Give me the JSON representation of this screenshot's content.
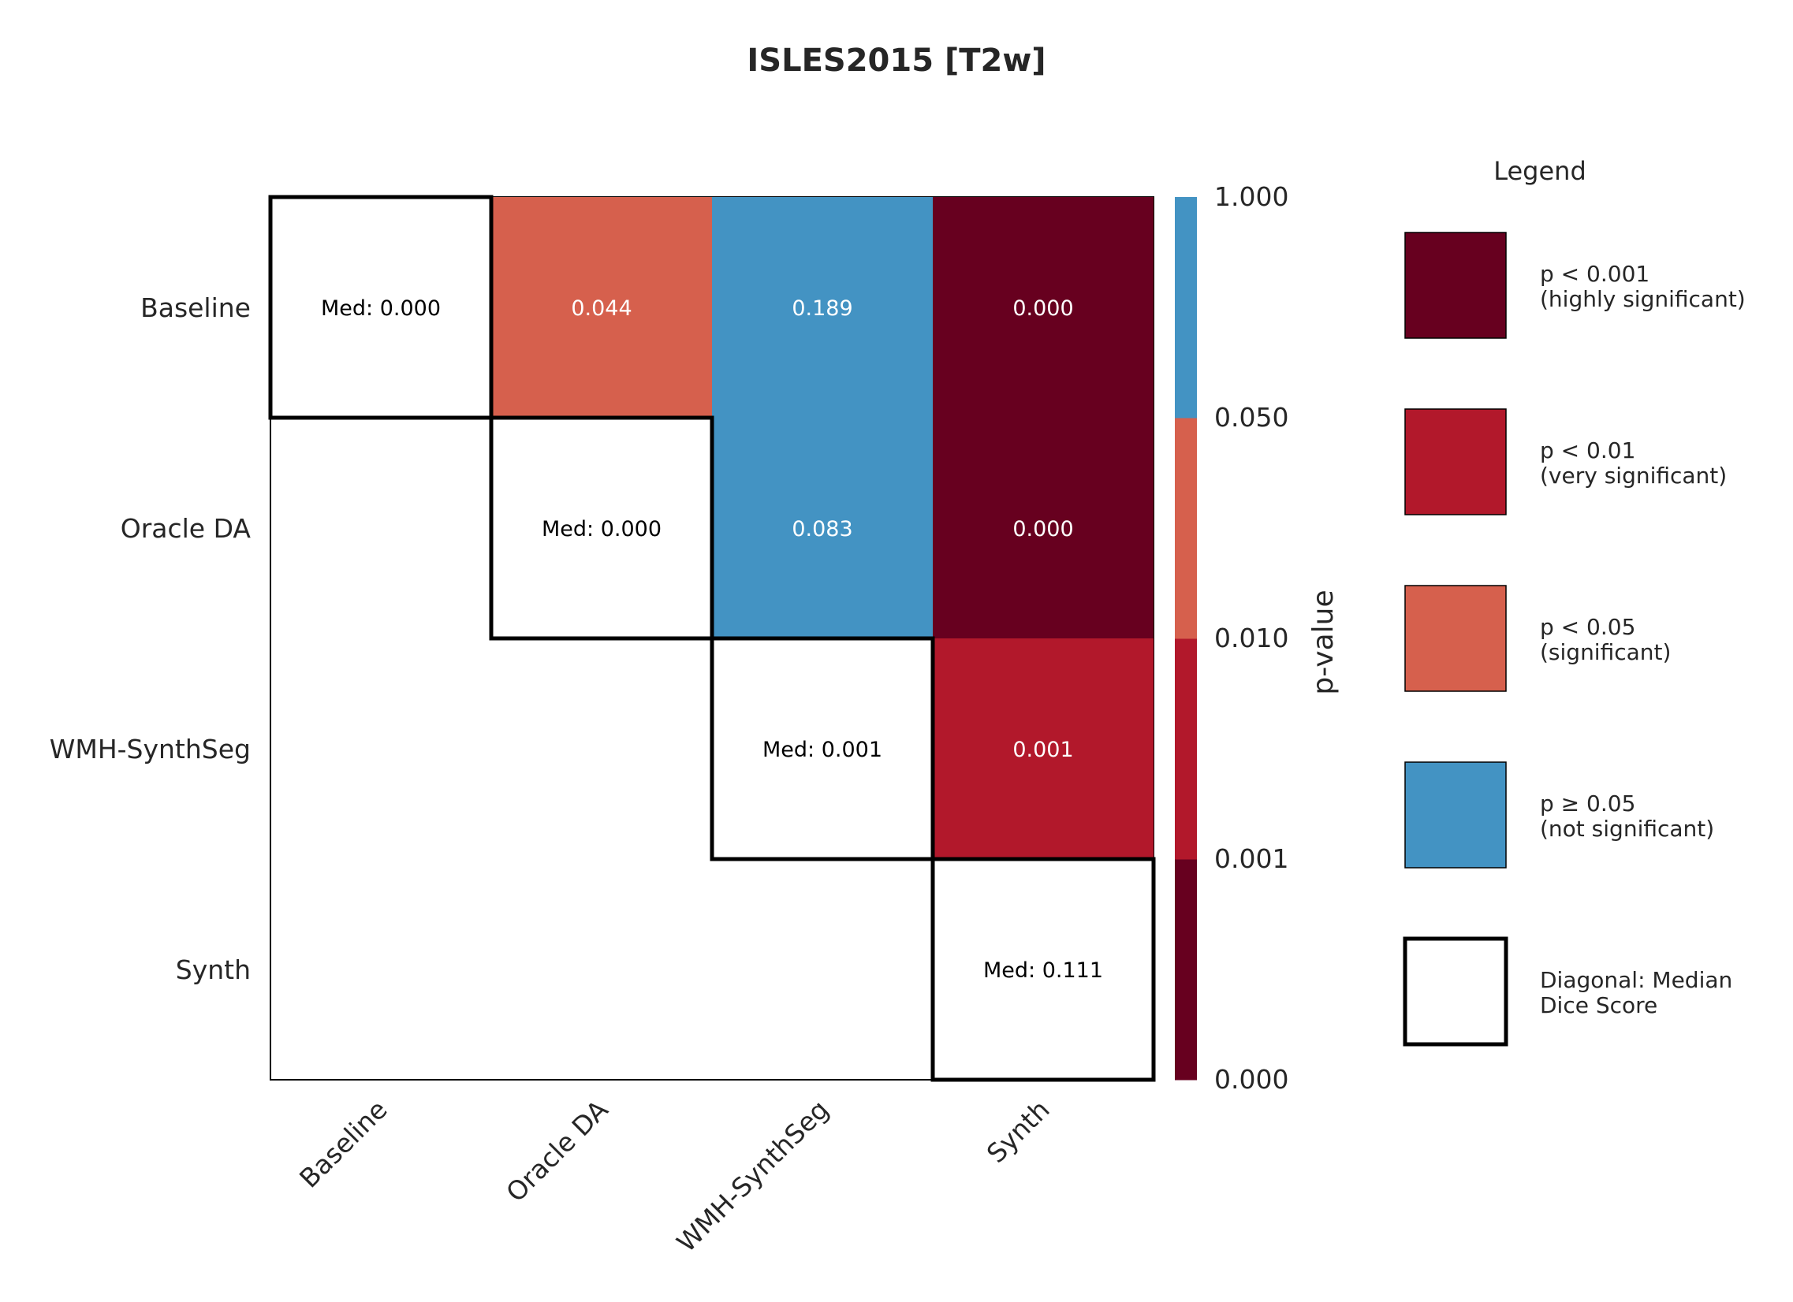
{
  "chart_data": {
    "type": "heatmap",
    "title": "ISLES2015 [T2w]",
    "rows": [
      "Baseline",
      "Oracle DA",
      "WMH-SynthSeg",
      "Synth"
    ],
    "cols": [
      "Baseline",
      "Oracle DA",
      "WMH-SynthSeg",
      "Synth"
    ],
    "cells": [
      {
        "row": 0,
        "col": 0,
        "label": "Med: 0.000",
        "value": 0.0,
        "diagonal": true
      },
      {
        "row": 0,
        "col": 1,
        "label": "0.044",
        "value": 0.044,
        "diagonal": false
      },
      {
        "row": 0,
        "col": 2,
        "label": "0.189",
        "value": 0.189,
        "diagonal": false
      },
      {
        "row": 0,
        "col": 3,
        "label": "0.000",
        "value": 0.0,
        "diagonal": false
      },
      {
        "row": 1,
        "col": 1,
        "label": "Med: 0.000",
        "value": 0.0,
        "diagonal": true
      },
      {
        "row": 1,
        "col": 2,
        "label": "0.083",
        "value": 0.083,
        "diagonal": false
      },
      {
        "row": 1,
        "col": 3,
        "label": "0.000",
        "value": 0.0,
        "diagonal": false
      },
      {
        "row": 2,
        "col": 2,
        "label": "Med: 0.001",
        "value": 0.001,
        "diagonal": true
      },
      {
        "row": 2,
        "col": 3,
        "label": "0.001",
        "value": 0.001,
        "diagonal": false
      },
      {
        "row": 3,
        "col": 3,
        "label": "Med: 0.111",
        "value": 0.111,
        "diagonal": true
      }
    ],
    "colorbar": {
      "label": "p-value",
      "ticks": [
        "0.000",
        "0.001",
        "0.010",
        "0.050",
        "1.000"
      ],
      "bands": [
        {
          "from": "0.000",
          "to": "0.001",
          "color": "#67001f"
        },
        {
          "from": "0.001",
          "to": "0.010",
          "color": "#b2182b"
        },
        {
          "from": "0.010",
          "to": "0.050",
          "color": "#d6604d"
        },
        {
          "from": "0.050",
          "to": "1.000",
          "color": "#4393c3"
        }
      ]
    },
    "legend": {
      "title": "Legend",
      "placement": "right",
      "items": [
        {
          "line1": "p < 0.001",
          "line2": "(highly significant)",
          "color": "#67001f",
          "outline": false
        },
        {
          "line1": "p < 0.01",
          "line2": "(very significant)",
          "color": "#b2182b",
          "outline": false
        },
        {
          "line1": "p < 0.05",
          "line2": "(significant)",
          "color": "#d6604d",
          "outline": false
        },
        {
          "line1": "p ≥ 0.05",
          "line2": "(not significant)",
          "color": "#4393c3",
          "outline": false
        },
        {
          "line1": "Diagonal: Median",
          "line2": "Dice Score",
          "color": "#ffffff",
          "outline": true
        }
      ]
    },
    "thresholds": [
      0.001,
      0.01,
      0.05
    ],
    "colors": {
      "highly_significant": "#67001f",
      "very_significant": "#b2182b",
      "significant": "#d6604d",
      "not_significant": "#4393c3",
      "diagonal": "#ffffff"
    }
  }
}
